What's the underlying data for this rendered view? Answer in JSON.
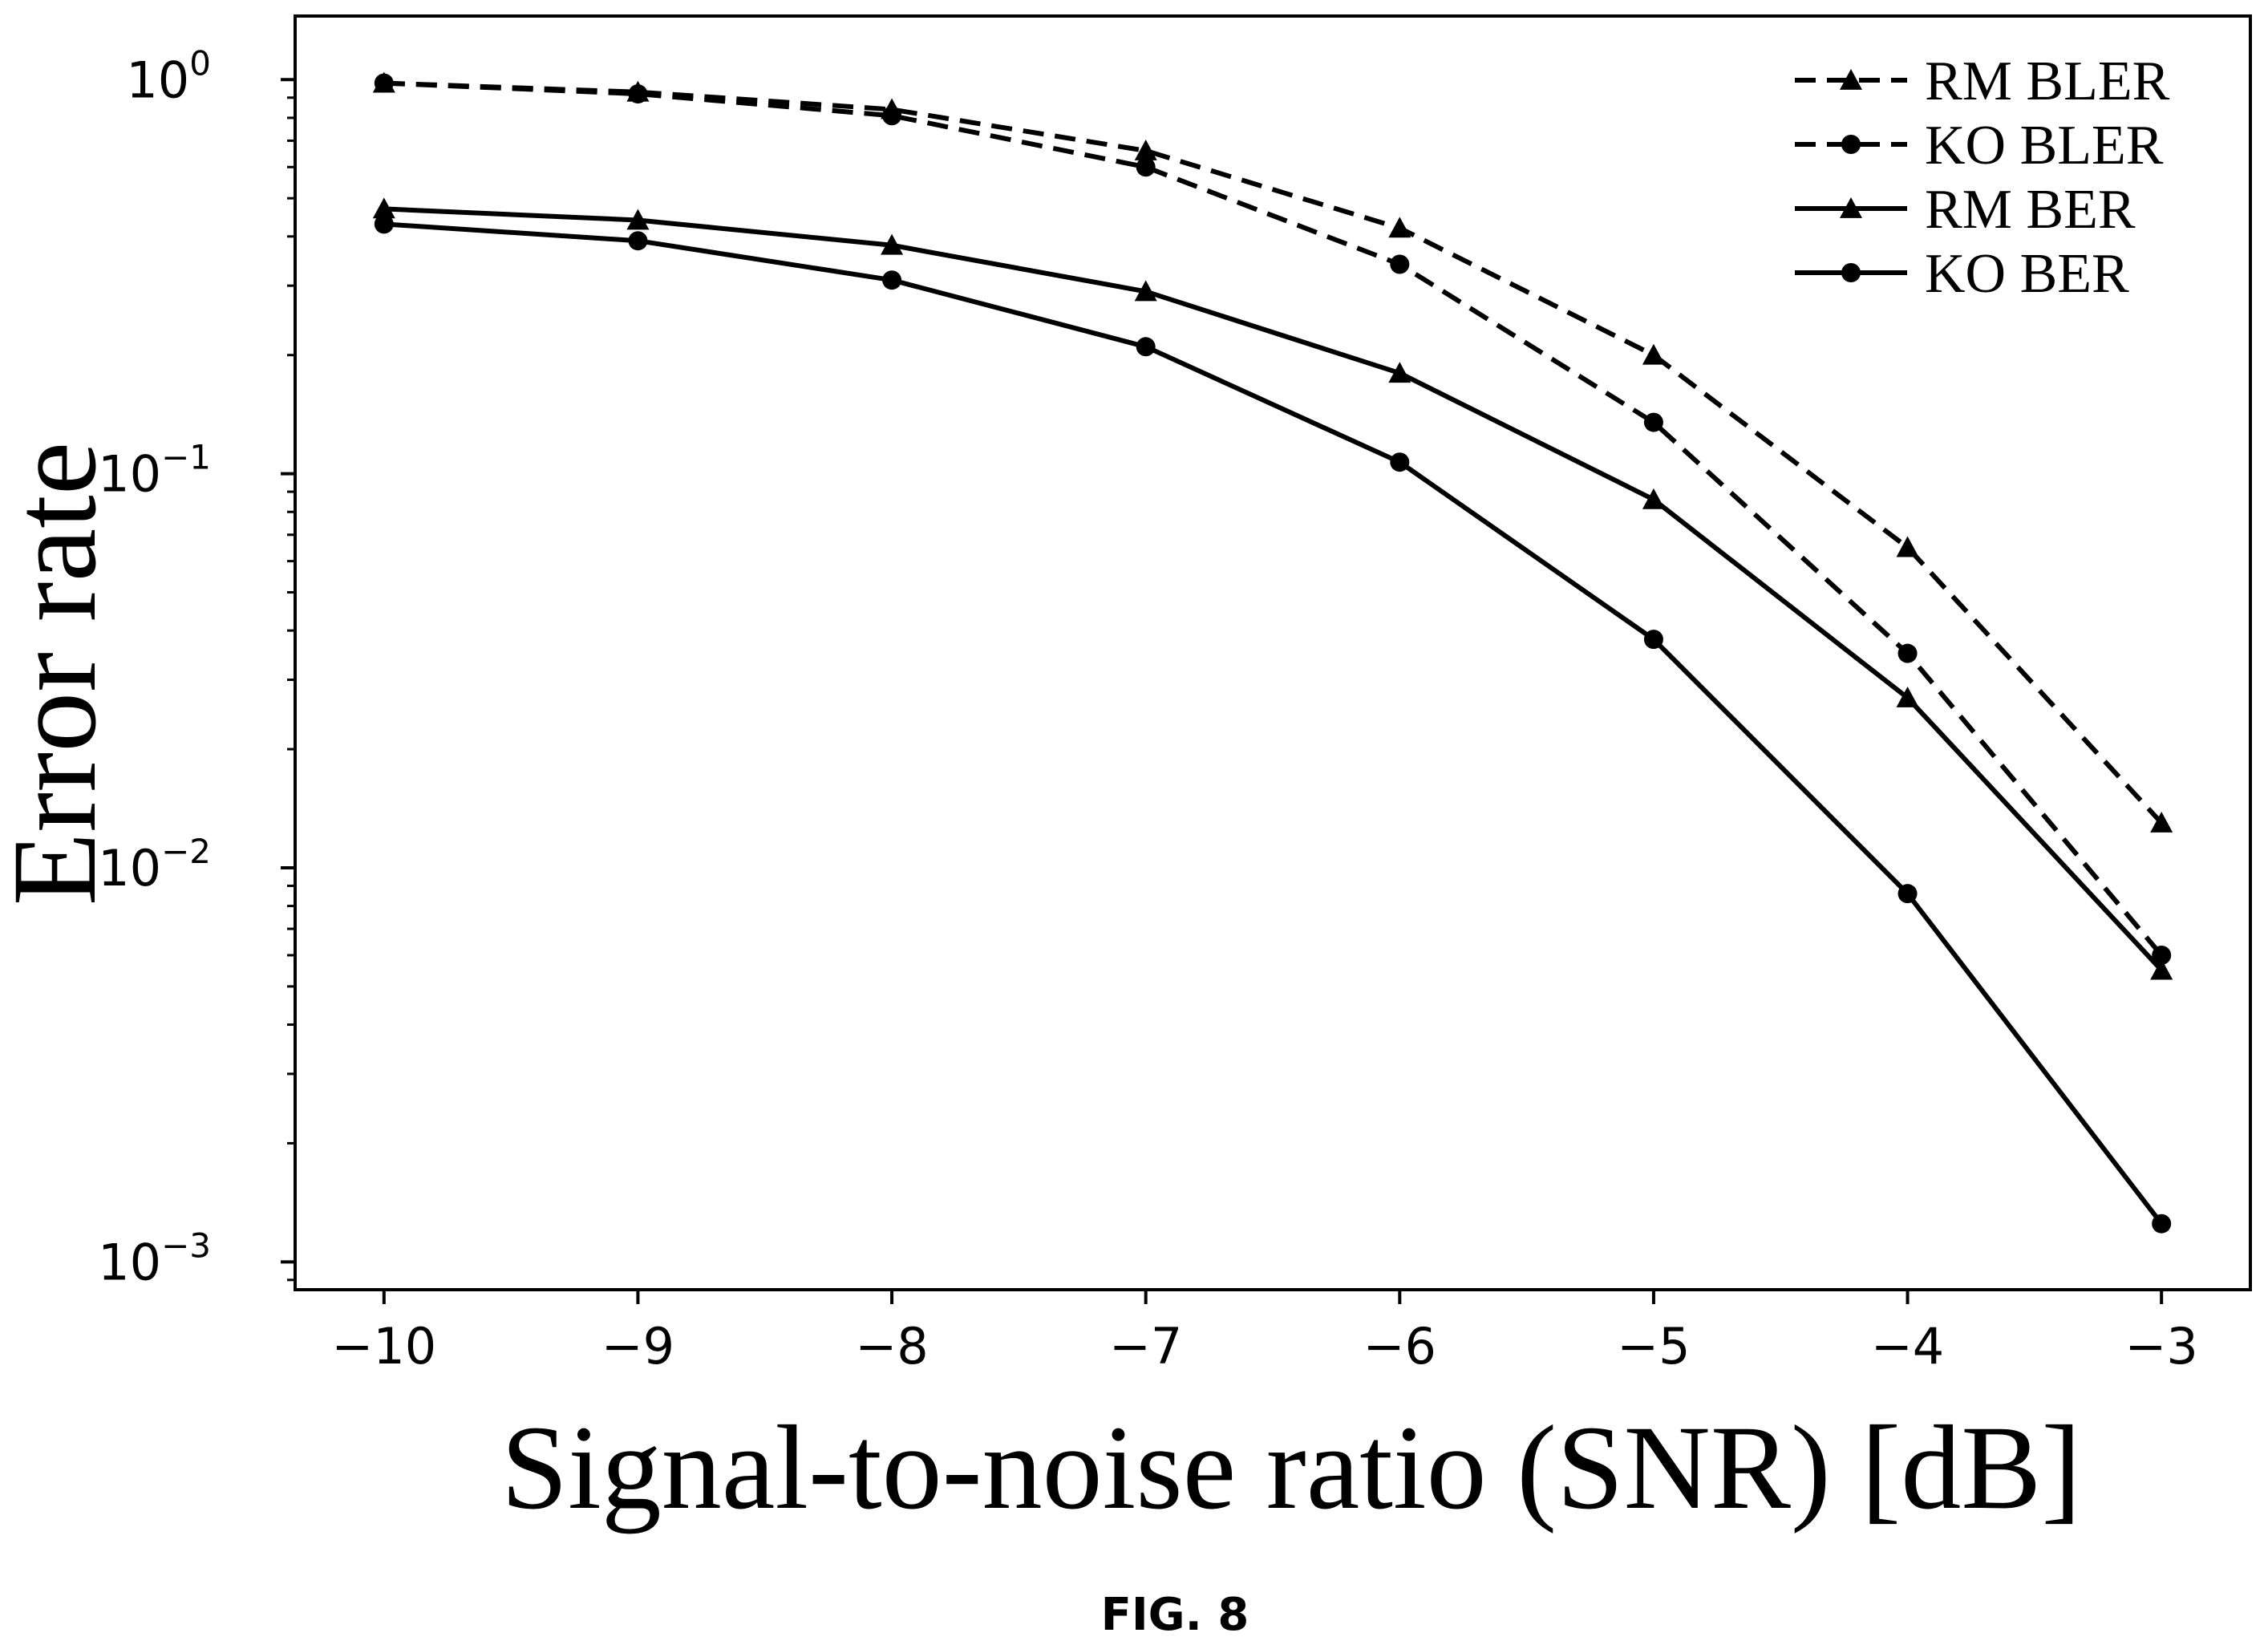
{
  "figure_label": "FIG. 8",
  "chart_data": {
    "type": "line",
    "xlabel": "Signal-to-noise ratio (SNR) [dB]",
    "ylabel": "Error rate",
    "x": [
      -10,
      -9,
      -8,
      -7,
      -6,
      -5,
      -4,
      -3
    ],
    "x_tick_labels": [
      "−10",
      "−9",
      "−8",
      "−7",
      "−6",
      "−5",
      "−4",
      "−3"
    ],
    "xlim": [
      -10.35,
      -2.65
    ],
    "yscale": "log",
    "ylim": [
      0.00085,
      1.45
    ],
    "y_ticks": [
      {
        "value": 1,
        "base": "10",
        "exp": "0"
      },
      {
        "value": 0.1,
        "base": "10",
        "exp": "−1"
      },
      {
        "value": 0.01,
        "base": "10",
        "exp": "−2"
      },
      {
        "value": 0.001,
        "base": "10",
        "exp": "−3"
      }
    ],
    "grid": false,
    "legend_position": "top-right",
    "series": [
      {
        "name": "RM BLER",
        "line": "dashed",
        "marker": "triangle",
        "color": "#000000",
        "values": [
          0.98,
          0.93,
          0.84,
          0.66,
          0.42,
          0.2,
          0.065,
          0.013
        ]
      },
      {
        "name": "KO BLER",
        "line": "dashed",
        "marker": "circle",
        "color": "#000000",
        "values": [
          0.98,
          0.92,
          0.81,
          0.6,
          0.34,
          0.135,
          0.035,
          0.006
        ]
      },
      {
        "name": "RM BER",
        "line": "solid",
        "marker": "triangle",
        "color": "#000000",
        "values": [
          0.47,
          0.44,
          0.38,
          0.29,
          0.18,
          0.086,
          0.027,
          0.0055
        ]
      },
      {
        "name": "KO BER",
        "line": "solid",
        "marker": "circle",
        "color": "#000000",
        "values": [
          0.43,
          0.39,
          0.31,
          0.21,
          0.107,
          0.038,
          0.0086,
          0.00125
        ]
      }
    ]
  }
}
